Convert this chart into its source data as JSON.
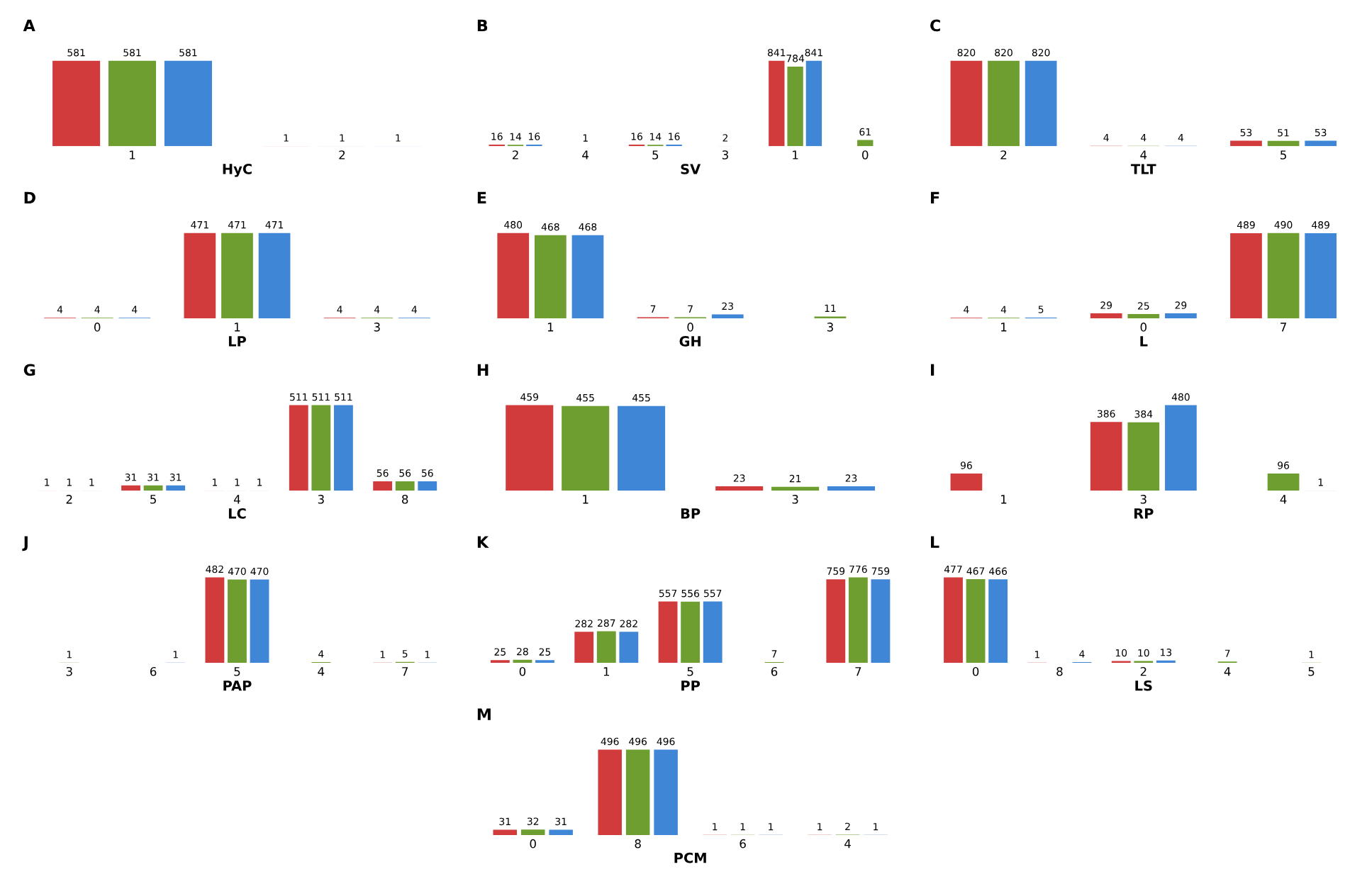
{
  "chart_data": [
    {
      "type": "bar",
      "title": "A",
      "xlabel": "HyC",
      "categories": [
        "1",
        "2"
      ],
      "data_labels": true,
      "series": [
        {
          "color": "#d13b3b",
          "values": [
            581,
            1
          ]
        },
        {
          "color": "#6e9e2f",
          "values": [
            581,
            1
          ]
        },
        {
          "color": "#3f86d6",
          "values": [
            581,
            1
          ]
        }
      ]
    },
    {
      "type": "bar",
      "title": "B",
      "xlabel": "SV",
      "categories": [
        "2",
        "4",
        "5",
        "3",
        "1",
        "0"
      ],
      "data_labels": true,
      "series": [
        {
          "color": "#d13b3b",
          "values": [
            16,
            null,
            16,
            null,
            841,
            null
          ]
        },
        {
          "color": "#6e9e2f",
          "values": [
            14,
            1,
            14,
            2,
            784,
            61
          ]
        },
        {
          "color": "#3f86d6",
          "values": [
            16,
            null,
            16,
            null,
            841,
            null
          ]
        }
      ]
    },
    {
      "type": "bar",
      "title": "C",
      "xlabel": "TLT",
      "categories": [
        "2",
        "4",
        "5"
      ],
      "data_labels": true,
      "series": [
        {
          "color": "#d13b3b",
          "values": [
            820,
            4,
            53
          ]
        },
        {
          "color": "#6e9e2f",
          "values": [
            820,
            4,
            51
          ]
        },
        {
          "color": "#3f86d6",
          "values": [
            820,
            4,
            53
          ]
        }
      ]
    },
    {
      "type": "bar",
      "title": "D",
      "xlabel": "LP",
      "categories": [
        "0",
        "1",
        "3"
      ],
      "data_labels": true,
      "series": [
        {
          "color": "#d13b3b",
          "values": [
            4,
            471,
            4
          ]
        },
        {
          "color": "#6e9e2f",
          "values": [
            4,
            471,
            4
          ]
        },
        {
          "color": "#3f86d6",
          "values": [
            4,
            471,
            4
          ]
        }
      ]
    },
    {
      "type": "bar",
      "title": "E",
      "xlabel": "GH",
      "categories": [
        "1",
        "0",
        "3"
      ],
      "data_labels": true,
      "series": [
        {
          "color": "#d13b3b",
          "values": [
            480,
            7,
            null
          ]
        },
        {
          "color": "#6e9e2f",
          "values": [
            468,
            7,
            11
          ]
        },
        {
          "color": "#3f86d6",
          "values": [
            468,
            23,
            null
          ]
        }
      ]
    },
    {
      "type": "bar",
      "title": "F",
      "xlabel": "L",
      "categories": [
        "1",
        "0",
        "7"
      ],
      "data_labels": true,
      "series": [
        {
          "color": "#d13b3b",
          "values": [
            4,
            29,
            489
          ]
        },
        {
          "color": "#6e9e2f",
          "values": [
            4,
            25,
            490
          ]
        },
        {
          "color": "#3f86d6",
          "values": [
            5,
            29,
            489
          ]
        }
      ]
    },
    {
      "type": "bar",
      "title": "G",
      "xlabel": "LC",
      "categories": [
        "2",
        "5",
        "4",
        "3",
        "8"
      ],
      "data_labels": true,
      "series": [
        {
          "color": "#d13b3b",
          "values": [
            1,
            31,
            1,
            511,
            56
          ]
        },
        {
          "color": "#6e9e2f",
          "values": [
            1,
            31,
            1,
            511,
            56
          ]
        },
        {
          "color": "#3f86d6",
          "values": [
            1,
            31,
            1,
            511,
            56
          ]
        }
      ]
    },
    {
      "type": "bar",
      "title": "H",
      "xlabel": "BP",
      "categories": [
        "1",
        "3"
      ],
      "data_labels": true,
      "series": [
        {
          "color": "#d13b3b",
          "values": [
            459,
            23
          ]
        },
        {
          "color": "#6e9e2f",
          "values": [
            455,
            21
          ]
        },
        {
          "color": "#3f86d6",
          "values": [
            455,
            23
          ]
        }
      ]
    },
    {
      "type": "bar",
      "title": "I",
      "xlabel": "RP",
      "categories": [
        "1",
        "3",
        "4"
      ],
      "data_labels": true,
      "series": [
        {
          "color": "#d13b3b",
          "values": [
            96,
            386,
            null
          ]
        },
        {
          "color": "#6e9e2f",
          "values": [
            null,
            384,
            96
          ]
        },
        {
          "color": "#3f86d6",
          "values": [
            null,
            480,
            1
          ]
        }
      ]
    },
    {
      "type": "bar",
      "title": "J",
      "xlabel": "PAP",
      "categories": [
        "3",
        "6",
        "5",
        "4",
        "7"
      ],
      "data_labels": true,
      "series": [
        {
          "color": "#d13b3b",
          "values": [
            null,
            null,
            482,
            null,
            1
          ]
        },
        {
          "color": "#6e9e2f",
          "values": [
            1,
            null,
            470,
            4,
            5
          ]
        },
        {
          "color": "#3f86d6",
          "values": [
            null,
            1,
            470,
            null,
            1
          ]
        }
      ]
    },
    {
      "type": "bar",
      "title": "K",
      "xlabel": "PP",
      "categories": [
        "0",
        "1",
        "5",
        "6",
        "7"
      ],
      "data_labels": true,
      "series": [
        {
          "color": "#d13b3b",
          "values": [
            25,
            282,
            557,
            null,
            759
          ]
        },
        {
          "color": "#6e9e2f",
          "values": [
            28,
            287,
            556,
            7,
            776
          ]
        },
        {
          "color": "#3f86d6",
          "values": [
            25,
            282,
            557,
            null,
            759
          ]
        }
      ]
    },
    {
      "type": "bar",
      "title": "L",
      "xlabel": "LS",
      "categories": [
        "0",
        "8",
        "2",
        "4",
        "5"
      ],
      "data_labels": true,
      "series": [
        {
          "color": "#d13b3b",
          "values": [
            477,
            1,
            10,
            null,
            null
          ]
        },
        {
          "color": "#6e9e2f",
          "values": [
            467,
            null,
            10,
            7,
            1
          ]
        },
        {
          "color": "#3f86d6",
          "values": [
            466,
            4,
            13,
            null,
            null
          ]
        }
      ]
    },
    {
      "type": "bar",
      "title": "M",
      "xlabel": "PCM",
      "categories": [
        "0",
        "8",
        "6",
        "4"
      ],
      "data_labels": true,
      "series": [
        {
          "color": "#d13b3b",
          "values": [
            31,
            496,
            1,
            1
          ]
        },
        {
          "color": "#6e9e2f",
          "values": [
            32,
            496,
            1,
            2
          ]
        },
        {
          "color": "#3f86d6",
          "values": [
            31,
            496,
            1,
            1
          ]
        }
      ]
    }
  ]
}
